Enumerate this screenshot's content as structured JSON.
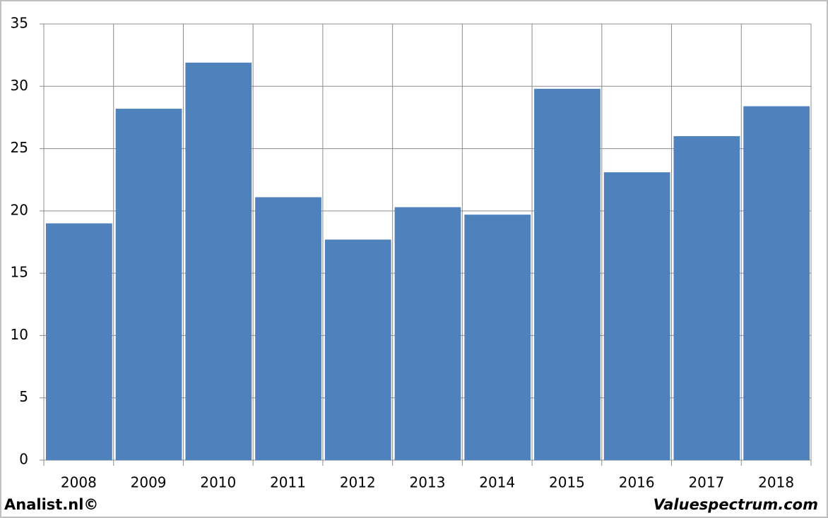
{
  "chart_data": {
    "type": "bar",
    "categories": [
      "2008",
      "2009",
      "2010",
      "2011",
      "2012",
      "2013",
      "2014",
      "2015",
      "2016",
      "2017",
      "2018"
    ],
    "values": [
      19.0,
      28.2,
      31.9,
      21.1,
      17.7,
      20.3,
      19.7,
      29.8,
      23.1,
      26.0,
      28.4
    ],
    "color": "#4f81bd",
    "ylim": [
      0,
      35
    ],
    "yticks": [
      0,
      5,
      10,
      15,
      20,
      25,
      30,
      35
    ],
    "grid": true,
    "annotations": [
      "Analist.nl©",
      "Valuespectrum.com"
    ]
  }
}
